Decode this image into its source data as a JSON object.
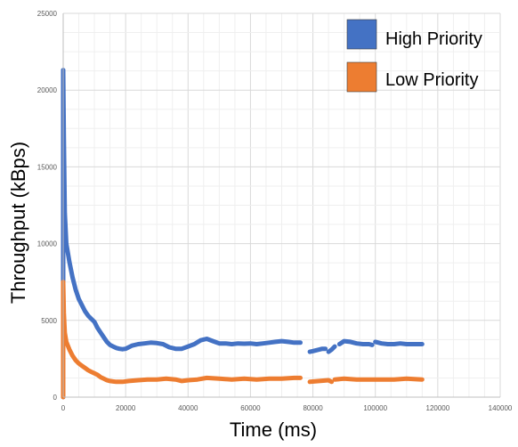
{
  "chart_data": {
    "type": "scatter",
    "title": "",
    "xlabel": "Time (ms)",
    "ylabel": "Throughput (kBps)",
    "xlim": [
      0,
      140000
    ],
    "ylim": [
      0,
      25000
    ],
    "x_ticks": [
      "0",
      "20000",
      "40000",
      "60000",
      "80000",
      "100000",
      "120000",
      "140000"
    ],
    "y_ticks": [
      "0",
      "5000",
      "10000",
      "15000",
      "20000",
      "25000"
    ],
    "grid": true,
    "legend_position": "top-right",
    "series": [
      {
        "name": "High Priority",
        "color": "#4472C4",
        "points": [
          [
            0,
            21300
          ],
          [
            200,
            17000
          ],
          [
            500,
            12000
          ],
          [
            1000,
            10000
          ],
          [
            2000,
            8800
          ],
          [
            3000,
            7800
          ],
          [
            4000,
            7000
          ],
          [
            5000,
            6400
          ],
          [
            6000,
            6000
          ],
          [
            7000,
            5600
          ],
          [
            8000,
            5300
          ],
          [
            9000,
            5100
          ],
          [
            10000,
            4900
          ],
          [
            11000,
            4500
          ],
          [
            12000,
            4200
          ],
          [
            13000,
            3900
          ],
          [
            14000,
            3600
          ],
          [
            15000,
            3400
          ],
          [
            16000,
            3300
          ],
          [
            17000,
            3200
          ],
          [
            18000,
            3150
          ],
          [
            19000,
            3120
          ],
          [
            20000,
            3150
          ],
          [
            21000,
            3250
          ],
          [
            22000,
            3350
          ],
          [
            24000,
            3450
          ],
          [
            26000,
            3500
          ],
          [
            28000,
            3550
          ],
          [
            30000,
            3520
          ],
          [
            32000,
            3450
          ],
          [
            34000,
            3250
          ],
          [
            36000,
            3150
          ],
          [
            38000,
            3150
          ],
          [
            40000,
            3300
          ],
          [
            42000,
            3450
          ],
          [
            44000,
            3700
          ],
          [
            46000,
            3800
          ],
          [
            48000,
            3650
          ],
          [
            50000,
            3500
          ],
          [
            52000,
            3500
          ],
          [
            54000,
            3450
          ],
          [
            56000,
            3500
          ],
          [
            58000,
            3480
          ],
          [
            60000,
            3500
          ],
          [
            62000,
            3450
          ],
          [
            64000,
            3500
          ],
          [
            66000,
            3550
          ],
          [
            68000,
            3600
          ],
          [
            70000,
            3650
          ],
          [
            72000,
            3600
          ],
          [
            74000,
            3550
          ],
          [
            76000,
            3550
          ]
        ],
        "segments": [
          [
            [
              79000,
              2950
            ],
            [
              80000,
              3000
            ],
            [
              81000,
              3050
            ],
            [
              82000,
              3100
            ],
            [
              83000,
              3150
            ],
            [
              84000,
              3150
            ]
          ],
          [
            [
              85000,
              2950
            ],
            [
              86000,
              3100
            ],
            [
              87000,
              3300
            ]
          ],
          [
            [
              88500,
              3450
            ],
            [
              90000,
              3650
            ],
            [
              92000,
              3600
            ],
            [
              94000,
              3500
            ],
            [
              96000,
              3450
            ],
            [
              98000,
              3450
            ],
            [
              99000,
              3400
            ]
          ],
          [
            [
              100000,
              3600
            ],
            [
              102000,
              3500
            ],
            [
              104000,
              3450
            ],
            [
              106000,
              3450
            ],
            [
              108000,
              3500
            ],
            [
              110000,
              3450
            ],
            [
              112000,
              3450
            ],
            [
              115000,
              3450
            ]
          ]
        ]
      },
      {
        "name": "Low Priority",
        "color": "#ED7D31",
        "points": [
          [
            0,
            7500
          ],
          [
            200,
            5500
          ],
          [
            500,
            4200
          ],
          [
            1000,
            3600
          ],
          [
            2000,
            3100
          ],
          [
            3000,
            2700
          ],
          [
            4000,
            2400
          ],
          [
            5000,
            2200
          ],
          [
            6000,
            2050
          ],
          [
            7000,
            1900
          ],
          [
            8000,
            1750
          ],
          [
            9000,
            1650
          ],
          [
            10000,
            1550
          ],
          [
            11000,
            1450
          ],
          [
            12000,
            1300
          ],
          [
            13000,
            1200
          ],
          [
            14000,
            1100
          ],
          [
            15000,
            1050
          ],
          [
            17000,
            1000
          ],
          [
            19000,
            1000
          ],
          [
            21000,
            1050
          ],
          [
            24000,
            1100
          ],
          [
            27000,
            1150
          ],
          [
            30000,
            1150
          ],
          [
            33000,
            1200
          ],
          [
            36000,
            1150
          ],
          [
            38000,
            1050
          ],
          [
            40000,
            1100
          ],
          [
            43000,
            1150
          ],
          [
            46000,
            1250
          ],
          [
            50000,
            1200
          ],
          [
            54000,
            1150
          ],
          [
            58000,
            1200
          ],
          [
            62000,
            1150
          ],
          [
            66000,
            1200
          ],
          [
            70000,
            1200
          ],
          [
            74000,
            1250
          ],
          [
            76000,
            1250
          ]
        ],
        "segments": [
          [
            [
              79000,
              1000
            ],
            [
              82000,
              1050
            ],
            [
              85000,
              1100
            ],
            [
              86000,
              1000
            ]
          ],
          [
            [
              87000,
              1150
            ],
            [
              90000,
              1200
            ],
            [
              94000,
              1150
            ],
            [
              98000,
              1150
            ],
            [
              102000,
              1150
            ],
            [
              106000,
              1150
            ],
            [
              110000,
              1200
            ],
            [
              115000,
              1150
            ]
          ]
        ]
      }
    ]
  }
}
